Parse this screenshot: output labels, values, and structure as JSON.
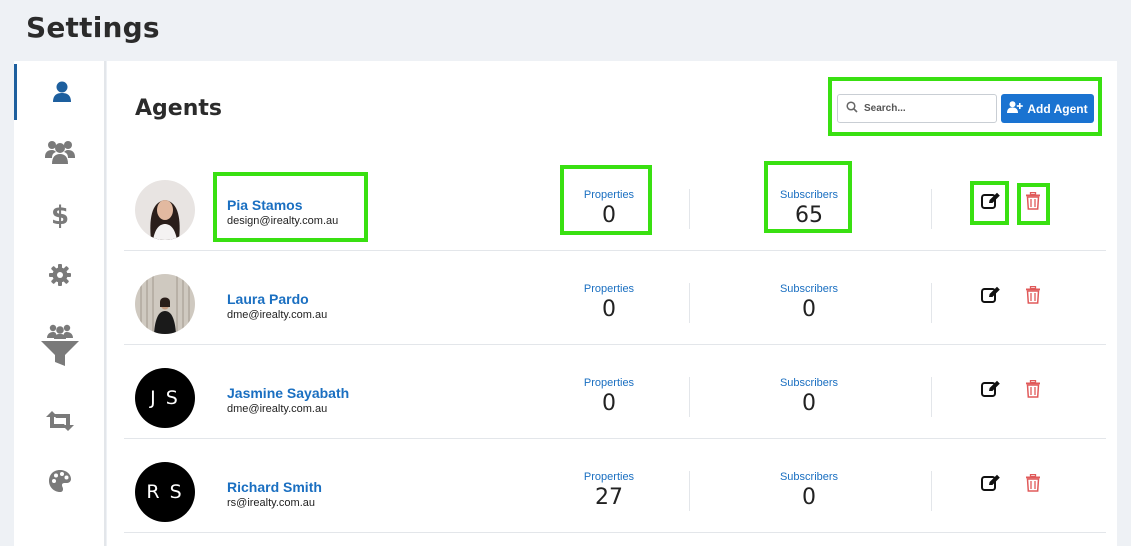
{
  "page": {
    "title": "Settings"
  },
  "sidebar": {
    "items": [
      {
        "icon": "user-icon",
        "active": true
      },
      {
        "icon": "users-icon",
        "active": false
      },
      {
        "icon": "dollar-icon",
        "active": false
      },
      {
        "icon": "gear-icon",
        "active": false
      },
      {
        "icon": "funnel-users-icon",
        "active": false
      },
      {
        "icon": "retweet-icon",
        "active": false
      },
      {
        "icon": "palette-icon",
        "active": false
      }
    ]
  },
  "agents": {
    "title": "Agents",
    "search_placeholder": "Search...",
    "add_label": "Add Agent",
    "properties_label": "Properties",
    "subscribers_label": "Subscribers",
    "list": [
      {
        "name": "Pia Stamos",
        "email": "design@irealty.com.au",
        "initials": "",
        "properties": "0",
        "subscribers": "65"
      },
      {
        "name": "Laura Pardo",
        "email": "dme@irealty.com.au",
        "initials": "",
        "properties": "0",
        "subscribers": "0"
      },
      {
        "name": "Jasmine Sayabath",
        "email": "dme@irealty.com.au",
        "initials": "J S",
        "properties": "0",
        "subscribers": "0"
      },
      {
        "name": "Richard Smith",
        "email": "rs@irealty.com.au",
        "initials": "R S",
        "properties": "27",
        "subscribers": "0"
      }
    ]
  },
  "colors": {
    "accent": "#1a73d1",
    "link": "#1a6fc1",
    "highlight": "#39e011",
    "danger": "#e05a5a"
  }
}
